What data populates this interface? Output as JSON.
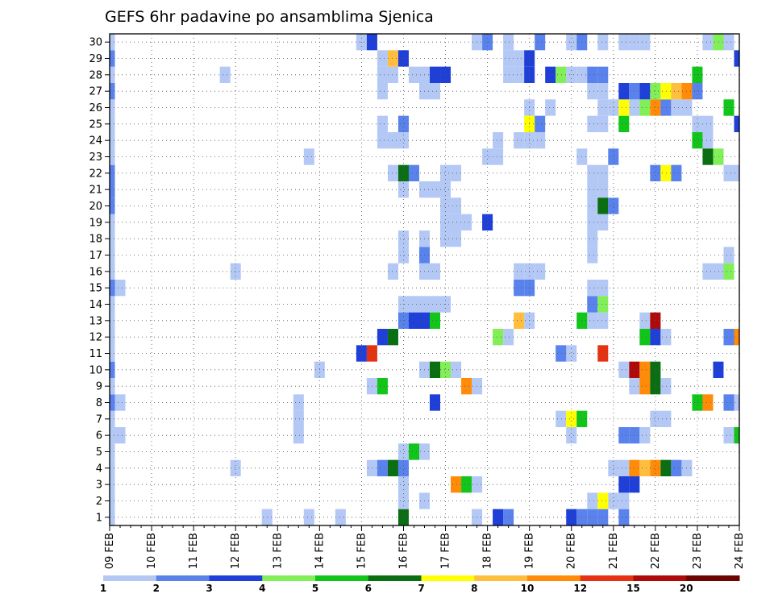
{
  "chart_data": {
    "type": "heatmap",
    "title": "GEFS 6hr padavine po ansamblima Sjenica",
    "xlabel": "",
    "ylabel": "",
    "x_ticks": [
      "09 FEB",
      "10 FEB",
      "11 FEB",
      "12 FEB",
      "13 FEB",
      "14 FEB",
      "15 FEB",
      "16 FEB",
      "17 FEB",
      "18 FEB",
      "19 FEB",
      "20 FEB",
      "21 FEB",
      "22 FEB",
      "23 FEB",
      "24 FEB"
    ],
    "y_ticks": [
      "1",
      "2",
      "3",
      "4",
      "5",
      "6",
      "7",
      "8",
      "9",
      "10",
      "11",
      "12",
      "13",
      "14",
      "15",
      "16",
      "17",
      "18",
      "19",
      "20",
      "21",
      "22",
      "23",
      "24",
      "25",
      "26",
      "27",
      "28",
      "29",
      "30"
    ],
    "xlim": [
      0,
      60
    ],
    "ylim": [
      0.5,
      30.5
    ],
    "grid": true,
    "colorbar": {
      "labels": [
        "1",
        "2",
        "3",
        "4",
        "5",
        "6",
        "7",
        "8",
        "10",
        "12",
        "15",
        "20"
      ],
      "colors": [
        "#b4c8f5",
        "#5a82ec",
        "#1e3fd8",
        "#82ee58",
        "#12c51a",
        "#0a6e12",
        "#ffff00",
        "#ffbe3e",
        "#ff8b08",
        "#e43212",
        "#ae0a0a",
        "#6c0400"
      ]
    },
    "cells": [
      {
        "m": 1,
        "s": [
          0,
          15,
          19,
          22,
          28,
          35,
          38,
          44,
          45,
          46,
          49
        ]
      },
      {
        "m": 2,
        "s": [
          0,
          28,
          30,
          46,
          48,
          49
        ]
      },
      {
        "m": 3,
        "s": [
          0,
          28,
          33,
          34,
          35,
          49,
          50
        ]
      },
      {
        "m": 4,
        "s": [
          0,
          12,
          25,
          26,
          27,
          28,
          48,
          49,
          50,
          51,
          52,
          53,
          54,
          55
        ]
      },
      {
        "m": 5,
        "s": [
          0,
          28,
          29,
          30
        ]
      },
      {
        "m": 6,
        "s": [
          0,
          1,
          18,
          44,
          49,
          50,
          51,
          59,
          60
        ]
      },
      {
        "m": 7,
        "s": [
          0,
          18,
          43,
          44,
          45,
          52,
          53
        ]
      },
      {
        "m": 8,
        "s": [
          0,
          1,
          18,
          31,
          56,
          57,
          60
        ]
      },
      {
        "m": 9,
        "s": [
          0,
          25,
          26,
          34,
          35,
          50,
          51,
          52,
          53
        ]
      },
      {
        "m": 10,
        "s": [
          0,
          20,
          30,
          31,
          32,
          33,
          49,
          50,
          51,
          52,
          58
        ]
      },
      {
        "m": 11,
        "s": [
          0,
          24,
          25,
          44,
          47
        ]
      },
      {
        "m": 12,
        "s": [
          0,
          26,
          27,
          38,
          51,
          52,
          53,
          59,
          60
        ]
      },
      {
        "m": 13,
        "s": [
          0,
          40,
          46,
          47,
          51,
          52
        ]
      },
      {
        "m": 14,
        "s": [
          0,
          28,
          29,
          30,
          31,
          32,
          46,
          47
        ]
      },
      {
        "m": 15,
        "s": [
          0,
          1,
          46,
          47
        ]
      },
      {
        "m": 16,
        "s": [
          0,
          12,
          27,
          30,
          31,
          39,
          40,
          41,
          57,
          58
        ]
      },
      {
        "m": 17,
        "s": [
          0,
          28,
          30,
          46,
          59
        ]
      },
      {
        "m": 18,
        "s": [
          0,
          28,
          30,
          32,
          33,
          46
        ]
      },
      {
        "m": 19,
        "s": [
          0,
          32,
          33,
          34,
          46,
          47
        ]
      },
      {
        "m": 20,
        "s": [
          0,
          32,
          33,
          46
        ]
      },
      {
        "m": 21,
        "s": [
          0,
          28,
          30,
          31,
          32,
          46,
          47
        ]
      },
      {
        "m": 22,
        "s": [
          0,
          27,
          28,
          32,
          33,
          46,
          47,
          59,
          60
        ]
      },
      {
        "m": 23,
        "s": [
          0,
          19,
          36,
          37,
          45
        ]
      },
      {
        "m": 24,
        "s": [
          0,
          26,
          27,
          28,
          37,
          39,
          40,
          41,
          57
        ]
      },
      {
        "m": 25,
        "s": [
          0,
          26,
          46,
          47,
          56,
          57
        ]
      },
      {
        "m": 26,
        "s": [
          0,
          40,
          42,
          47,
          48,
          50,
          51,
          52,
          53,
          54,
          55
        ]
      },
      {
        "m": 27,
        "s": [
          0,
          26,
          30,
          31,
          46,
          47
        ]
      },
      {
        "m": 28,
        "s": [
          0,
          11,
          26,
          27,
          29,
          30,
          38,
          39,
          44,
          45
        ]
      },
      {
        "m": 29,
        "s": [
          0,
          26,
          27,
          38,
          39
        ]
      },
      {
        "m": 30,
        "s": [
          0,
          24,
          35,
          38,
          44,
          45,
          47,
          49,
          50,
          51,
          57,
          58,
          59
        ]
      }
    ],
    "colored": [
      {
        "m": 1,
        "s": 28,
        "c": 6
      },
      {
        "m": 1,
        "s": 37,
        "c": 3
      },
      {
        "m": 1,
        "s": 38,
        "c": 2
      },
      {
        "m": 1,
        "s": 44,
        "c": 3
      },
      {
        "m": 1,
        "s": 45,
        "c": 2
      },
      {
        "m": 1,
        "s": 46,
        "c": 2
      },
      {
        "m": 1,
        "s": 47,
        "c": 2
      },
      {
        "m": 1,
        "s": 49,
        "c": 2
      },
      {
        "m": 2,
        "s": 47,
        "c": 7
      },
      {
        "m": 3,
        "s": 33,
        "c": 9
      },
      {
        "m": 3,
        "s": 34,
        "c": 5
      },
      {
        "m": 3,
        "s": 49,
        "c": 3
      },
      {
        "m": 3,
        "s": 50,
        "c": 3
      },
      {
        "m": 4,
        "s": 26,
        "c": 2
      },
      {
        "m": 4,
        "s": 27,
        "c": 6
      },
      {
        "m": 4,
        "s": 28,
        "c": 2
      },
      {
        "m": 4,
        "s": 50,
        "c": 9
      },
      {
        "m": 4,
        "s": 51,
        "c": 8
      },
      {
        "m": 4,
        "s": 52,
        "c": 9
      },
      {
        "m": 4,
        "s": 53,
        "c": 6
      },
      {
        "m": 4,
        "s": 54,
        "c": 2
      },
      {
        "m": 5,
        "s": 29,
        "c": 5
      },
      {
        "m": 6,
        "s": 49,
        "c": 2
      },
      {
        "m": 6,
        "s": 50,
        "c": 2
      },
      {
        "m": 6,
        "s": 60,
        "c": 5
      },
      {
        "m": 7,
        "s": 44,
        "c": 7
      },
      {
        "m": 7,
        "s": 45,
        "c": 5
      },
      {
        "m": 8,
        "s": 0,
        "c": 2
      },
      {
        "m": 8,
        "s": 31,
        "c": 3
      },
      {
        "m": 8,
        "s": 56,
        "c": 5
      },
      {
        "m": 8,
        "s": 57,
        "c": 9
      },
      {
        "m": 8,
        "s": 59,
        "c": 2
      },
      {
        "m": 9,
        "s": 26,
        "c": 5
      },
      {
        "m": 9,
        "s": 34,
        "c": 9
      },
      {
        "m": 9,
        "s": 51,
        "c": 9
      },
      {
        "m": 9,
        "s": 52,
        "c": 6
      },
      {
        "m": 10,
        "s": 0,
        "c": 2
      },
      {
        "m": 10,
        "s": 31,
        "c": 6
      },
      {
        "m": 10,
        "s": 32,
        "c": 4
      },
      {
        "m": 10,
        "s": 50,
        "c": 11
      },
      {
        "m": 10,
        "s": 51,
        "c": 9
      },
      {
        "m": 10,
        "s": 52,
        "c": 6
      },
      {
        "m": 10,
        "s": 58,
        "c": 3
      },
      {
        "m": 11,
        "s": 24,
        "c": 3
      },
      {
        "m": 11,
        "s": 25,
        "c": 10
      },
      {
        "m": 11,
        "s": 43,
        "c": 2
      },
      {
        "m": 11,
        "s": 47,
        "c": 10
      },
      {
        "m": 12,
        "s": 26,
        "c": 3
      },
      {
        "m": 12,
        "s": 27,
        "c": 6
      },
      {
        "m": 12,
        "s": 37,
        "c": 4
      },
      {
        "m": 12,
        "s": 51,
        "c": 5
      },
      {
        "m": 12,
        "s": 52,
        "c": 3
      },
      {
        "m": 12,
        "s": 59,
        "c": 2
      },
      {
        "m": 12,
        "s": 60,
        "c": 9
      },
      {
        "m": 13,
        "s": 28,
        "c": 2
      },
      {
        "m": 13,
        "s": 29,
        "c": 3
      },
      {
        "m": 13,
        "s": 30,
        "c": 3
      },
      {
        "m": 13,
        "s": 31,
        "c": 5
      },
      {
        "m": 13,
        "s": 39,
        "c": 8
      },
      {
        "m": 13,
        "s": 45,
        "c": 5
      },
      {
        "m": 13,
        "s": 52,
        "c": 11
      },
      {
        "m": 14,
        "s": 46,
        "c": 2
      },
      {
        "m": 14,
        "s": 47,
        "c": 4
      },
      {
        "m": 15,
        "s": 0,
        "c": 2
      },
      {
        "m": 15,
        "s": 39,
        "c": 2
      },
      {
        "m": 15,
        "s": 40,
        "c": 2
      },
      {
        "m": 16,
        "s": 59,
        "c": 4
      },
      {
        "m": 17,
        "s": 30,
        "c": 2
      },
      {
        "m": 19,
        "s": 36,
        "c": 3
      },
      {
        "m": 20,
        "s": 0,
        "c": 2
      },
      {
        "m": 20,
        "s": 47,
        "c": 6
      },
      {
        "m": 20,
        "s": 48,
        "c": 2
      },
      {
        "m": 21,
        "s": 0,
        "c": 2
      },
      {
        "m": 22,
        "s": 0,
        "c": 2
      },
      {
        "m": 22,
        "s": 28,
        "c": 6
      },
      {
        "m": 22,
        "s": 29,
        "c": 2
      },
      {
        "m": 22,
        "s": 52,
        "c": 2
      },
      {
        "m": 22,
        "s": 53,
        "c": 7
      },
      {
        "m": 22,
        "s": 54,
        "c": 2
      },
      {
        "m": 23,
        "s": 48,
        "c": 2
      },
      {
        "m": 23,
        "s": 57,
        "c": 6
      },
      {
        "m": 23,
        "s": 58,
        "c": 4
      },
      {
        "m": 24,
        "s": 56,
        "c": 5
      },
      {
        "m": 25,
        "s": 28,
        "c": 2
      },
      {
        "m": 25,
        "s": 40,
        "c": 7
      },
      {
        "m": 25,
        "s": 41,
        "c": 2
      },
      {
        "m": 25,
        "s": 49,
        "c": 5
      },
      {
        "m": 25,
        "s": 60,
        "c": 3
      },
      {
        "m": 26,
        "s": 49,
        "c": 7
      },
      {
        "m": 26,
        "s": 51,
        "c": 4
      },
      {
        "m": 26,
        "s": 52,
        "c": 9
      },
      {
        "m": 26,
        "s": 53,
        "c": 2
      },
      {
        "m": 26,
        "s": 59,
        "c": 5
      },
      {
        "m": 27,
        "s": 0,
        "c": 2
      },
      {
        "m": 27,
        "s": 49,
        "c": 3
      },
      {
        "m": 27,
        "s": 50,
        "c": 2
      },
      {
        "m": 27,
        "s": 51,
        "c": 3
      },
      {
        "m": 27,
        "s": 52,
        "c": 4
      },
      {
        "m": 27,
        "s": 53,
        "c": 7
      },
      {
        "m": 27,
        "s": 54,
        "c": 8
      },
      {
        "m": 27,
        "s": 55,
        "c": 9
      },
      {
        "m": 27,
        "s": 56,
        "c": 2
      },
      {
        "m": 28,
        "s": 31,
        "c": 3
      },
      {
        "m": 28,
        "s": 32,
        "c": 3
      },
      {
        "m": 28,
        "s": 40,
        "c": 3
      },
      {
        "m": 28,
        "s": 42,
        "c": 3
      },
      {
        "m": 28,
        "s": 43,
        "c": 4
      },
      {
        "m": 28,
        "s": 46,
        "c": 2
      },
      {
        "m": 28,
        "s": 47,
        "c": 2
      },
      {
        "m": 28,
        "s": 56,
        "c": 5
      },
      {
        "m": 29,
        "s": 0,
        "c": 2
      },
      {
        "m": 29,
        "s": 27,
        "c": 8
      },
      {
        "m": 29,
        "s": 28,
        "c": 3
      },
      {
        "m": 29,
        "s": 40,
        "c": 3
      },
      {
        "m": 29,
        "s": 60,
        "c": 3
      },
      {
        "m": 30,
        "s": 25,
        "c": 3
      },
      {
        "m": 30,
        "s": 36,
        "c": 2
      },
      {
        "m": 30,
        "s": 41,
        "c": 2
      },
      {
        "m": 30,
        "s": 45,
        "c": 2
      },
      {
        "m": 30,
        "s": 58,
        "c": 4
      }
    ]
  }
}
